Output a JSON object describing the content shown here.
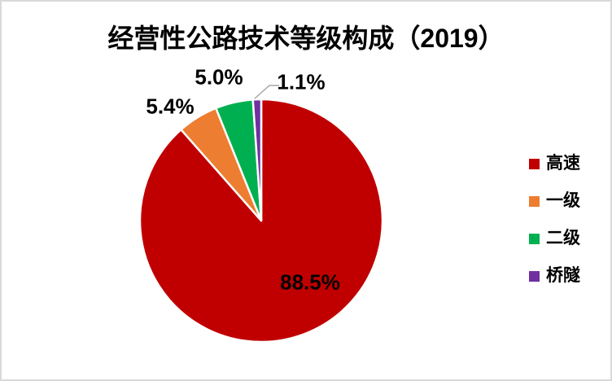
{
  "chart_data": {
    "type": "pie",
    "title": "经营性公路技术等级构成（2019）",
    "categories": [
      "高速",
      "一级",
      "二级",
      "桥隧"
    ],
    "values": [
      88.5,
      5.4,
      5.0,
      1.1
    ],
    "labels": [
      "88.5%",
      "5.4%",
      "5.0%",
      "1.1%"
    ],
    "colors": [
      "#C00000",
      "#ED7D31",
      "#00B050",
      "#7030A0"
    ],
    "slice_border_color": "#FFFFFF",
    "legend_position": "right",
    "start_angle_deg": 0,
    "direction": "clockwise",
    "label_format": "percent",
    "text_color": "#000000",
    "leader_line_color": "#A6A6A6",
    "frame_border_color": "#D9D9D9",
    "background": "#FFFFFF"
  }
}
